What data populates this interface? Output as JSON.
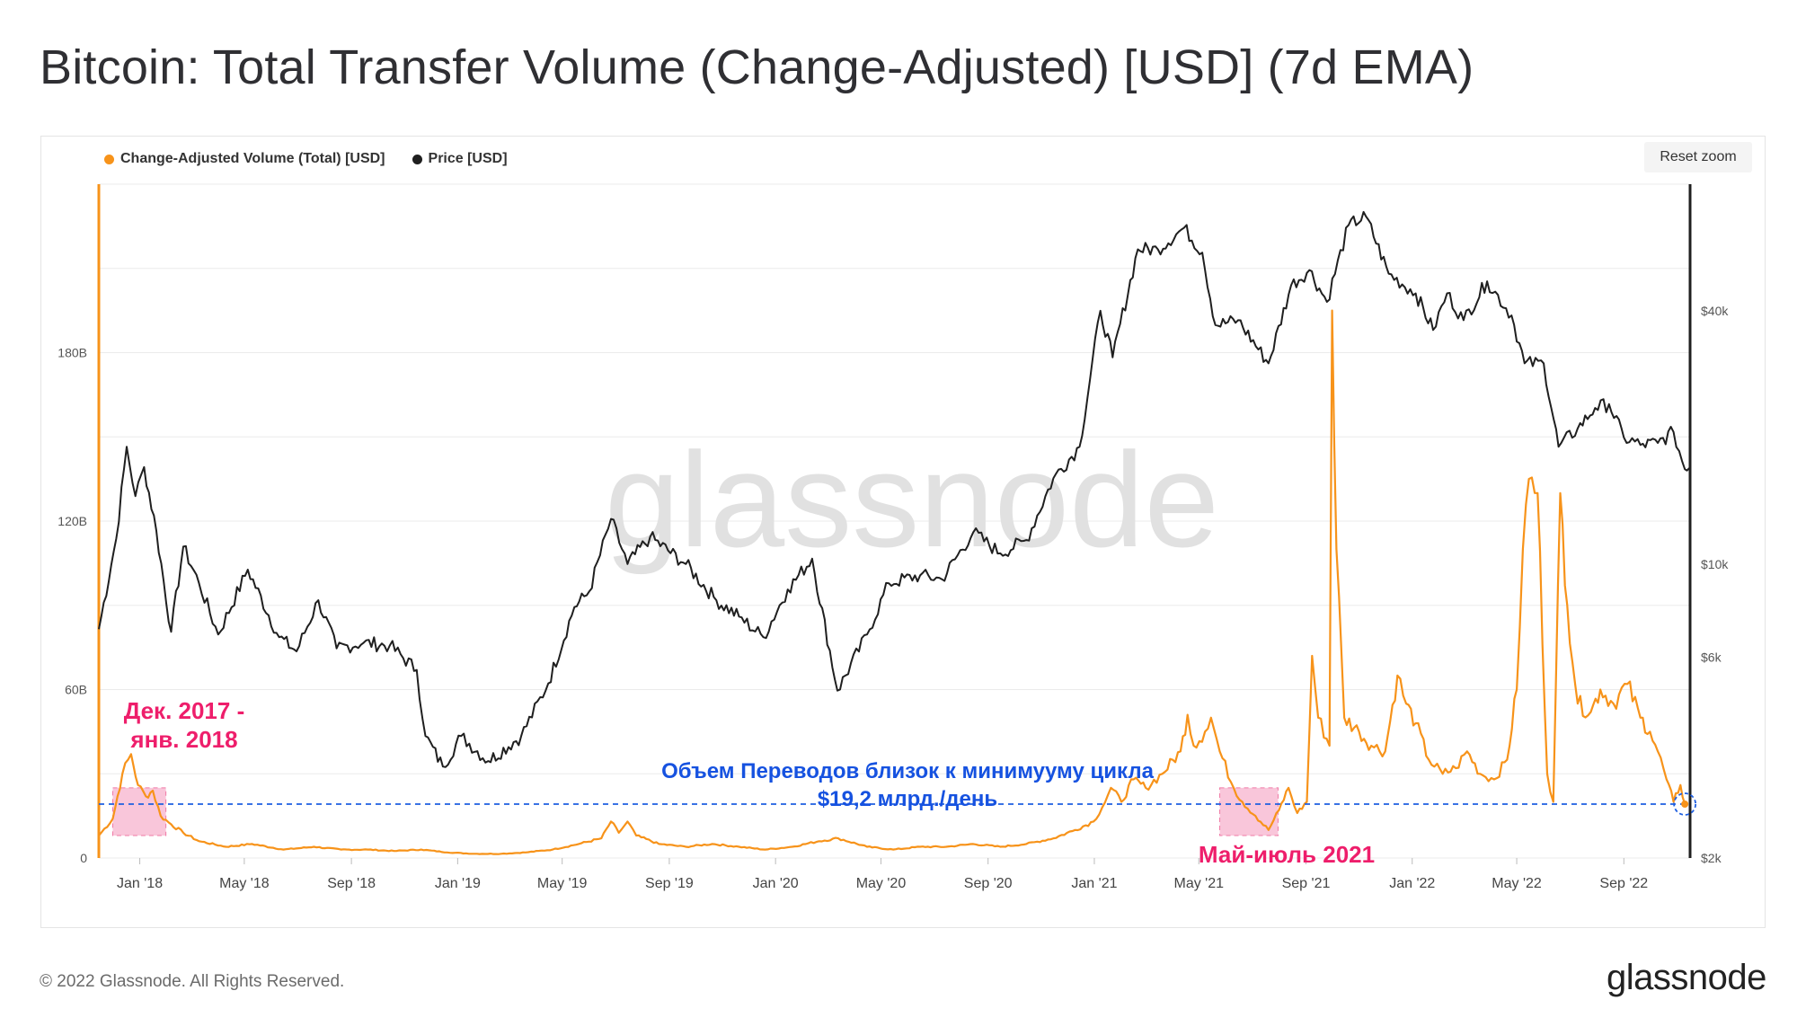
{
  "title": "Bitcoin: Total Transfer Volume (Change-Adjusted) [USD] (7d EMA)",
  "footer": {
    "copyright": "© 2022 Glassnode. All Rights Reserved.",
    "logo": "glassnode"
  },
  "watermark": "glassnode",
  "reset_zoom_label": "Reset zoom",
  "colors": {
    "volume": "#f7931a",
    "price": "#1f1f1f",
    "threshold": "#1f5fe0",
    "highlight_fill": "#f8bcd3",
    "highlight_text": "#ee1e6b",
    "annotation_blue": "#1652e0"
  },
  "chart_data": {
    "type": "line",
    "legend": [
      {
        "name": "Change-Adjusted Volume (Total) [USD]",
        "color": "#f7931a"
      },
      {
        "name": "Price [USD]",
        "color": "#1f1f1f"
      }
    ],
    "legend_position": "top-left",
    "grid": true,
    "x_ticks": [
      "Jan '18",
      "May '18",
      "Sep '18",
      "Jan '19",
      "May '19",
      "Sep '19",
      "Jan '20",
      "May '20",
      "Sep '20",
      "Jan '21",
      "May '21",
      "Sep '21",
      "Jan '22",
      "May '22",
      "Sep '22"
    ],
    "x_range": [
      "2017-11-15",
      "2022-11-15"
    ],
    "y_left": {
      "label": "",
      "ticks": [
        "0",
        "60B",
        "120B",
        "180B"
      ],
      "range": [
        0,
        240
      ]
    },
    "y_right": {
      "label": "",
      "scale": "log",
      "ticks": [
        "$2k",
        "$6k",
        "$10k",
        "$40k"
      ],
      "range": [
        2000,
        80000
      ]
    },
    "series": [
      {
        "name": "Change-Adjusted Volume (Total) [USD]",
        "axis": "left",
        "unit": "billion USD",
        "points": [
          [
            "2017-11-15",
            8
          ],
          [
            "2017-12-01",
            14
          ],
          [
            "2017-12-12",
            30
          ],
          [
            "2017-12-22",
            37
          ],
          [
            "2017-12-30",
            26
          ],
          [
            "2018-01-08",
            22
          ],
          [
            "2018-01-16",
            24
          ],
          [
            "2018-01-25",
            15
          ],
          [
            "2018-02-06",
            12
          ],
          [
            "2018-02-20",
            9
          ],
          [
            "2018-03-10",
            6
          ],
          [
            "2018-04-10",
            4
          ],
          [
            "2018-05-10",
            5
          ],
          [
            "2018-06-15",
            3
          ],
          [
            "2018-07-20",
            4
          ],
          [
            "2018-08-20",
            3
          ],
          [
            "2018-09-20",
            3
          ],
          [
            "2018-10-20",
            2.5
          ],
          [
            "2018-11-20",
            3
          ],
          [
            "2018-12-20",
            2
          ],
          [
            "2019-01-20",
            1.5
          ],
          [
            "2019-02-20",
            1.5
          ],
          [
            "2019-03-20",
            2
          ],
          [
            "2019-04-20",
            3
          ],
          [
            "2019-05-20",
            5
          ],
          [
            "2019-06-15",
            7
          ],
          [
            "2019-06-26",
            13
          ],
          [
            "2019-07-05",
            9
          ],
          [
            "2019-07-15",
            13
          ],
          [
            "2019-07-25",
            8
          ],
          [
            "2019-08-20",
            5
          ],
          [
            "2019-09-20",
            4
          ],
          [
            "2019-10-20",
            5
          ],
          [
            "2019-11-20",
            4
          ],
          [
            "2019-12-20",
            3
          ],
          [
            "2020-01-20",
            4
          ],
          [
            "2020-02-20",
            6
          ],
          [
            "2020-03-13",
            7
          ],
          [
            "2020-04-15",
            4
          ],
          [
            "2020-05-15",
            3
          ],
          [
            "2020-06-15",
            4
          ],
          [
            "2020-07-15",
            4
          ],
          [
            "2020-08-15",
            5
          ],
          [
            "2020-09-15",
            4
          ],
          [
            "2020-10-15",
            5
          ],
          [
            "2020-11-15",
            7
          ],
          [
            "2020-12-10",
            10
          ],
          [
            "2020-12-31",
            13
          ],
          [
            "2021-01-10",
            18
          ],
          [
            "2021-01-20",
            25
          ],
          [
            "2021-02-01",
            20
          ],
          [
            "2021-02-15",
            28
          ],
          [
            "2021-03-01",
            25
          ],
          [
            "2021-03-20",
            30
          ],
          [
            "2021-04-10",
            38
          ],
          [
            "2021-04-18",
            51
          ],
          [
            "2021-04-25",
            40
          ],
          [
            "2021-05-08",
            45
          ],
          [
            "2021-05-15",
            50
          ],
          [
            "2021-05-25",
            38
          ],
          [
            "2021-06-10",
            25
          ],
          [
            "2021-06-20",
            20
          ],
          [
            "2021-07-05",
            15
          ],
          [
            "2021-07-20",
            10
          ],
          [
            "2021-08-01",
            17
          ],
          [
            "2021-08-12",
            25
          ],
          [
            "2021-08-22",
            16
          ],
          [
            "2021-09-02",
            20
          ],
          [
            "2021-09-08",
            72
          ],
          [
            "2021-09-15",
            50
          ],
          [
            "2021-09-28",
            40
          ],
          [
            "2021-10-01",
            195
          ],
          [
            "2021-10-06",
            110
          ],
          [
            "2021-10-15",
            50
          ],
          [
            "2021-11-01",
            45
          ],
          [
            "2021-11-15",
            40
          ],
          [
            "2021-12-01",
            38
          ],
          [
            "2021-12-15",
            65
          ],
          [
            "2021-12-25",
            55
          ],
          [
            "2022-01-05",
            48
          ],
          [
            "2022-01-20",
            35
          ],
          [
            "2022-02-05",
            30
          ],
          [
            "2022-02-20",
            32
          ],
          [
            "2022-03-05",
            38
          ],
          [
            "2022-03-20",
            30
          ],
          [
            "2022-04-05",
            28
          ],
          [
            "2022-04-20",
            35
          ],
          [
            "2022-05-01",
            60
          ],
          [
            "2022-05-08",
            110
          ],
          [
            "2022-05-15",
            135
          ],
          [
            "2022-05-25",
            130
          ],
          [
            "2022-06-05",
            30
          ],
          [
            "2022-06-12",
            20
          ],
          [
            "2022-06-20",
            130
          ],
          [
            "2022-06-28",
            90
          ],
          [
            "2022-07-10",
            55
          ],
          [
            "2022-07-25",
            52
          ],
          [
            "2022-08-05",
            60
          ],
          [
            "2022-08-20",
            55
          ],
          [
            "2022-09-05",
            62
          ],
          [
            "2022-09-20",
            50
          ],
          [
            "2022-10-01",
            45
          ],
          [
            "2022-10-10",
            38
          ],
          [
            "2022-10-20",
            28
          ],
          [
            "2022-10-28",
            20
          ],
          [
            "2022-11-05",
            26
          ],
          [
            "2022-11-10",
            19.2
          ]
        ]
      },
      {
        "name": "Price [USD]",
        "axis": "right",
        "unit": "USD",
        "points": [
          [
            "2017-11-15",
            7000
          ],
          [
            "2017-12-05",
            11500
          ],
          [
            "2017-12-17",
            19000
          ],
          [
            "2017-12-27",
            14500
          ],
          [
            "2018-01-06",
            17000
          ],
          [
            "2018-01-20",
            12000
          ],
          [
            "2018-02-06",
            6900
          ],
          [
            "2018-02-20",
            11000
          ],
          [
            "2018-03-10",
            9000
          ],
          [
            "2018-04-01",
            6800
          ],
          [
            "2018-05-05",
            9700
          ],
          [
            "2018-06-10",
            6700
          ],
          [
            "2018-06-30",
            6200
          ],
          [
            "2018-07-25",
            8200
          ],
          [
            "2018-08-15",
            6300
          ],
          [
            "2018-09-15",
            6500
          ],
          [
            "2018-10-15",
            6400
          ],
          [
            "2018-11-15",
            5600
          ],
          [
            "2018-11-25",
            3900
          ],
          [
            "2018-12-15",
            3300
          ],
          [
            "2019-01-05",
            3900
          ],
          [
            "2019-02-05",
            3400
          ],
          [
            "2019-03-15",
            3900
          ],
          [
            "2019-04-15",
            5200
          ],
          [
            "2019-05-15",
            7900
          ],
          [
            "2019-06-01",
            8600
          ],
          [
            "2019-06-26",
            12800
          ],
          [
            "2019-07-15",
            10000
          ],
          [
            "2019-08-10",
            11600
          ],
          [
            "2019-09-20",
            10000
          ],
          [
            "2019-10-25",
            8200
          ],
          [
            "2019-11-20",
            7500
          ],
          [
            "2019-12-18",
            6700
          ],
          [
            "2020-01-15",
            8700
          ],
          [
            "2020-02-12",
            10300
          ],
          [
            "2020-03-12",
            5000
          ],
          [
            "2020-04-15",
            6800
          ],
          [
            "2020-05-10",
            9000
          ],
          [
            "2020-06-15",
            9400
          ],
          [
            "2020-07-10",
            9200
          ],
          [
            "2020-08-15",
            11900
          ],
          [
            "2020-09-15",
            10600
          ],
          [
            "2020-10-15",
            11400
          ],
          [
            "2020-11-15",
            16000
          ],
          [
            "2020-12-15",
            19000
          ],
          [
            "2021-01-08",
            40000
          ],
          [
            "2021-01-22",
            31000
          ],
          [
            "2021-02-20",
            56000
          ],
          [
            "2021-03-15",
            56000
          ],
          [
            "2021-04-14",
            63000
          ],
          [
            "2021-05-05",
            55000
          ],
          [
            "2021-05-20",
            37000
          ],
          [
            "2021-06-15",
            38000
          ],
          [
            "2021-07-20",
            30000
          ],
          [
            "2021-08-15",
            46000
          ],
          [
            "2021-09-05",
            50000
          ],
          [
            "2021-09-25",
            42000
          ],
          [
            "2021-10-20",
            64000
          ],
          [
            "2021-11-09",
            67000
          ],
          [
            "2021-12-05",
            49000
          ],
          [
            "2022-01-05",
            44000
          ],
          [
            "2022-01-25",
            36000
          ],
          [
            "2022-02-10",
            44000
          ],
          [
            "2022-03-01",
            38000
          ],
          [
            "2022-03-28",
            47000
          ],
          [
            "2022-04-25",
            39000
          ],
          [
            "2022-05-10",
            30000
          ],
          [
            "2022-06-01",
            30000
          ],
          [
            "2022-06-18",
            19000
          ],
          [
            "2022-07-10",
            21000
          ],
          [
            "2022-07-30",
            23500
          ],
          [
            "2022-08-15",
            24000
          ],
          [
            "2022-09-01",
            20000
          ],
          [
            "2022-09-20",
            19200
          ],
          [
            "2022-10-10",
            19400
          ],
          [
            "2022-10-28",
            20600
          ],
          [
            "2022-11-10",
            16800
          ],
          [
            "2022-11-15",
            16900
          ]
        ]
      }
    ],
    "reference_line": {
      "value": 19.2,
      "axis": "left",
      "style": "dashed"
    },
    "annotations": [
      {
        "text": "Дек. 2017 -\nянв. 2018",
        "range": [
          "2017-12-01",
          "2018-01-31"
        ],
        "color": "#ee1e6b"
      },
      {
        "text": "Май-июль 2021",
        "range": [
          "2021-05-25",
          "2021-07-31"
        ],
        "color": "#ee1e6b"
      },
      {
        "text": "Объем Переводов близок к минимууму цикла\n$19,2 млрд./день",
        "color": "#1652e0"
      }
    ]
  }
}
